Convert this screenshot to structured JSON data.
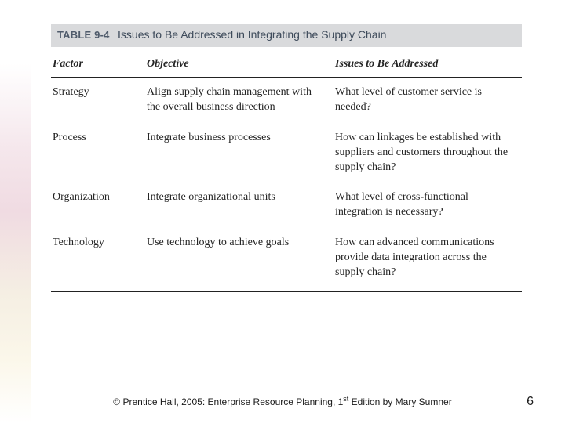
{
  "header": {
    "table_number": "TABLE 9-4",
    "table_title": "Issues to Be Addressed in Integrating the Supply Chain"
  },
  "columns": {
    "factor": "Factor",
    "objective": "Objective",
    "issues": "Issues to Be Addressed"
  },
  "rows": [
    {
      "factor": "Strategy",
      "objective": "Align supply chain management with the overall business direction",
      "issues": "What level of customer service is needed?"
    },
    {
      "factor": "Process",
      "objective": "Integrate business processes",
      "issues": "How can linkages be established with suppliers and customers throughout the supply chain?"
    },
    {
      "factor": "Organization",
      "objective": "Integrate organizational units",
      "issues": "What level of cross-functional integration is necessary?"
    },
    {
      "factor": "Technology",
      "objective": "Use technology to achieve goals",
      "issues": "How can advanced communications provide data integration across the supply chain?"
    }
  ],
  "footer": {
    "copyright_prefix": "© Prentice Hall, 2005: Enterprise Resource Planning, 1",
    "copyright_sup": "st",
    "copyright_suffix": " Edition by Mary Sumner",
    "page_number": "6"
  },
  "style": {
    "header_bg": "#d9dadc",
    "header_number_color": "#4f5b6b",
    "header_title_color": "#3d4a5a",
    "rule_color": "#222222",
    "body_text_color": "#242424"
  }
}
